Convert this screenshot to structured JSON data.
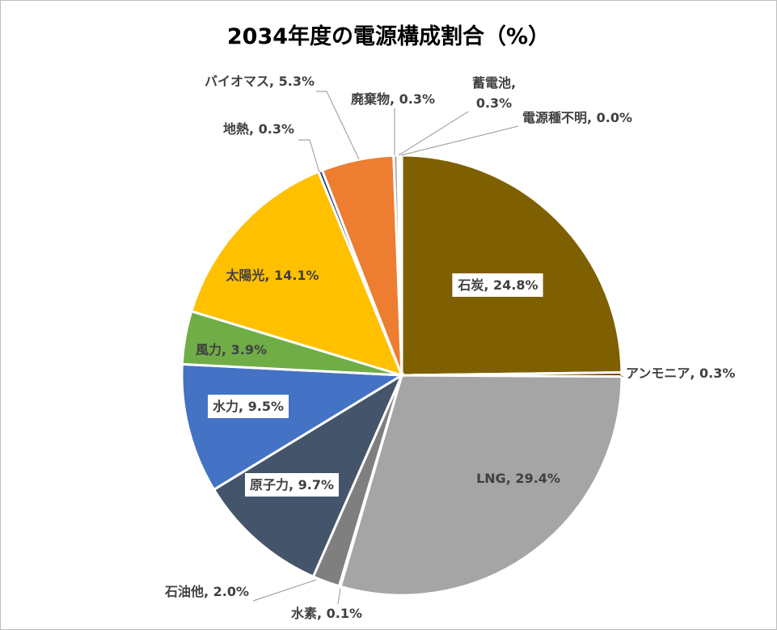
{
  "chart_data": {
    "type": "pie",
    "title": "2034年度の電源構成割合（%）",
    "slices": [
      {
        "name": "石炭",
        "value": 24.8,
        "color": "#7f6000",
        "label": "石炭, 24.8%"
      },
      {
        "name": "アンモニア",
        "value": 0.3,
        "color": "#843c0c",
        "label": "アンモニア, 0.3%"
      },
      {
        "name": "LNG",
        "value": 29.4,
        "color": "#a5a5a5",
        "label": "LNG, 29.4%"
      },
      {
        "name": "水素",
        "value": 0.1,
        "color": "#ffc000",
        "label": "水素, 0.1%"
      },
      {
        "name": "石油他",
        "value": 2.0,
        "color": "#7f7f7f",
        "label": "石油他, 2.0%"
      },
      {
        "name": "原子力",
        "value": 9.7,
        "color": "#44546a",
        "label": "原子力, 9.7%"
      },
      {
        "name": "水力",
        "value": 9.5,
        "color": "#4472c4",
        "label": "水力, 9.5%"
      },
      {
        "name": "風力",
        "value": 3.9,
        "color": "#70ad47",
        "label": "風力, 3.9%"
      },
      {
        "name": "太陽光",
        "value": 14.1,
        "color": "#ffc000",
        "label": "太陽光, 14.1%"
      },
      {
        "name": "地熱",
        "value": 0.3,
        "color": "#264478",
        "label": "地熱, 0.3%"
      },
      {
        "name": "バイオマス",
        "value": 5.3,
        "color": "#ed7d31",
        "label": "バイオマス, 5.3%"
      },
      {
        "name": "廃棄物",
        "value": 0.3,
        "color": "#a5a5a5",
        "label": "廃棄物, 0.3%"
      },
      {
        "name": "蓄電池",
        "value": 0.3,
        "color": "#ffffff",
        "label": "蓄電池,\n0.3%"
      },
      {
        "name": "電源種不明",
        "value": 0.0,
        "color": "#ffffff",
        "label": "電源種不明, 0.0%"
      }
    ]
  }
}
